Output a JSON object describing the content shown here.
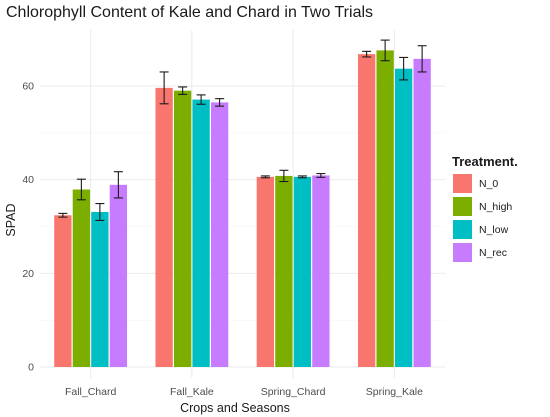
{
  "chart_data": {
    "type": "bar",
    "title": "Chlorophyll Content of Kale and Chard in Two Trials",
    "xlabel": "Crops and Seasons",
    "ylabel": "SPAD",
    "ylim": [
      0,
      70
    ],
    "yticks": [
      0,
      20,
      40,
      60
    ],
    "ytick_labels": [
      "0",
      "20",
      "40",
      "60"
    ],
    "grid": true,
    "legend_position": "right",
    "legend_title": "Treatment.",
    "categories": [
      "Fall_Chard",
      "Fall_Kale",
      "Spring_Chard",
      "Spring_Kale"
    ],
    "series": [
      {
        "name": "N_0",
        "color": "#F8766D",
        "values": [
          32.4,
          59.6,
          40.6,
          66.8
        ],
        "errors": [
          0.4,
          3.4,
          0.2,
          0.6
        ]
      },
      {
        "name": "N_high",
        "color": "#7CAE00",
        "values": [
          37.9,
          59.0,
          40.8,
          67.6
        ],
        "errors": [
          2.2,
          0.8,
          1.2,
          2.2
        ]
      },
      {
        "name": "N_low",
        "color": "#00BFC4",
        "values": [
          33.1,
          57.1,
          40.6,
          63.7
        ],
        "errors": [
          1.8,
          1.0,
          0.2,
          2.4
        ]
      },
      {
        "name": "N_rec",
        "color": "#C77CFF",
        "values": [
          38.9,
          56.5,
          40.9,
          65.8
        ],
        "errors": [
          2.8,
          0.8,
          0.4,
          2.8
        ]
      }
    ]
  }
}
